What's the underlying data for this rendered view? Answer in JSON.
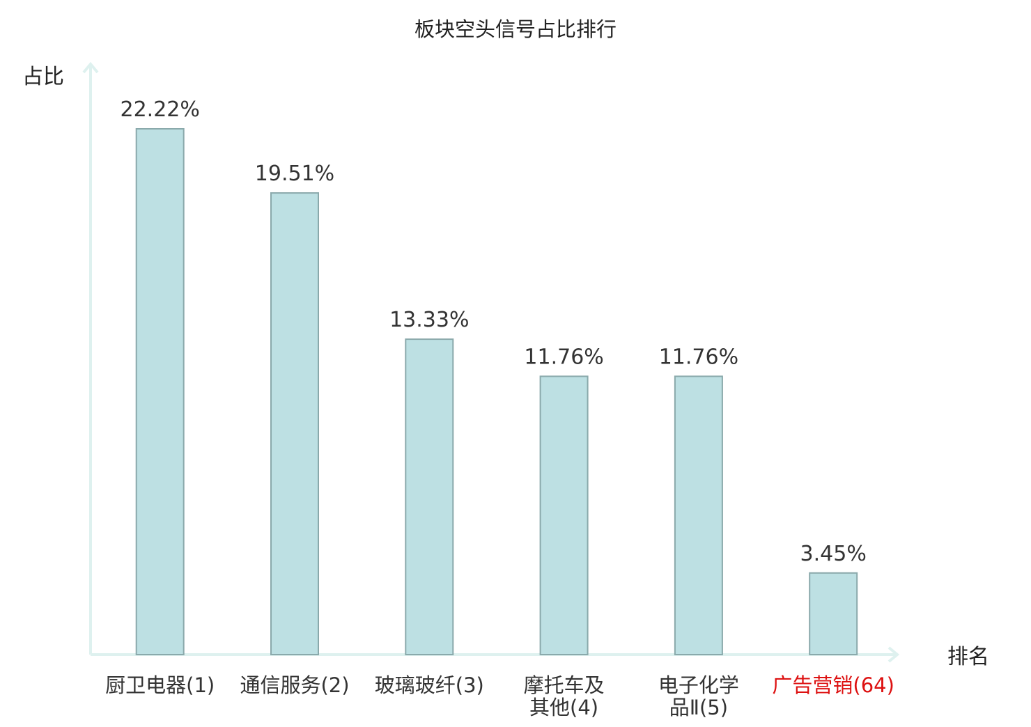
{
  "chart_data": {
    "type": "bar",
    "title": "板块空头信号占比排行",
    "ylabel": "占比",
    "xlabel": "排名",
    "ylim": [
      0,
      25
    ],
    "grid": false,
    "legend": "none",
    "categories": [
      {
        "name": "厨卫电器",
        "rank": "(1)",
        "lines": [
          "厨卫电器(1)"
        ]
      },
      {
        "name": "通信服务",
        "rank": "(2)",
        "lines": [
          "通信服务(2)"
        ]
      },
      {
        "name": "玻璃玻纤",
        "rank": "(3)",
        "lines": [
          "玻璃玻纤(3)"
        ]
      },
      {
        "name": "摩托车及其他",
        "rank": "(4)",
        "lines": [
          "摩托车及",
          "其他(4)"
        ]
      },
      {
        "name": "电子化学品Ⅱ",
        "rank": "(5)",
        "lines": [
          "电子化学",
          "品Ⅱ(5)"
        ]
      },
      {
        "name": "广告营销",
        "rank": "(64)",
        "lines": [
          "广告营销(64)"
        ],
        "highlight": true
      }
    ],
    "values": [
      22.22,
      19.51,
      13.33,
      11.76,
      11.76,
      3.45
    ],
    "value_labels": [
      "22.22%",
      "19.51%",
      "13.33%",
      "11.76%",
      "11.76%",
      "3.45%"
    ]
  },
  "colors": {
    "bar_fill": "#bde0e3",
    "bar_stroke": "#8aa9ab",
    "axis": "#def1ef",
    "label_text": "#333333",
    "highlight_text": "#dd1111"
  }
}
